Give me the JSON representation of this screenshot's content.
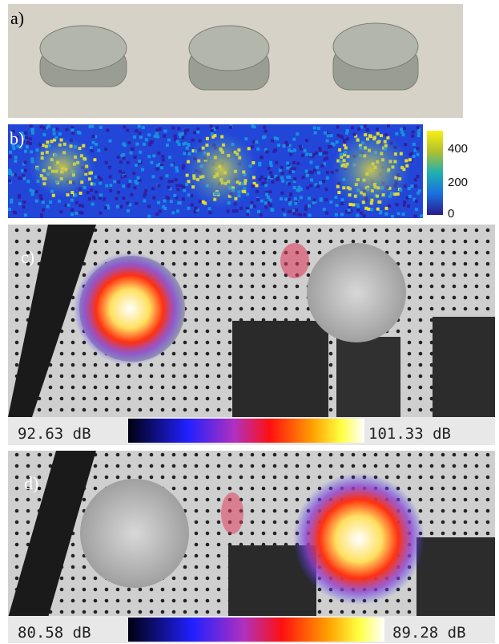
{
  "panels": [
    {
      "label": "a)"
    },
    {
      "label": "b)",
      "colorbar_ticks": [
        "400",
        "200",
        "0"
      ]
    },
    {
      "label": "c)",
      "scale_min": "92.63 dB",
      "scale_max": "101.33 dB"
    },
    {
      "label": "d)",
      "scale_min": "80.58 dB",
      "scale_max": "89.28 dB"
    }
  ]
}
